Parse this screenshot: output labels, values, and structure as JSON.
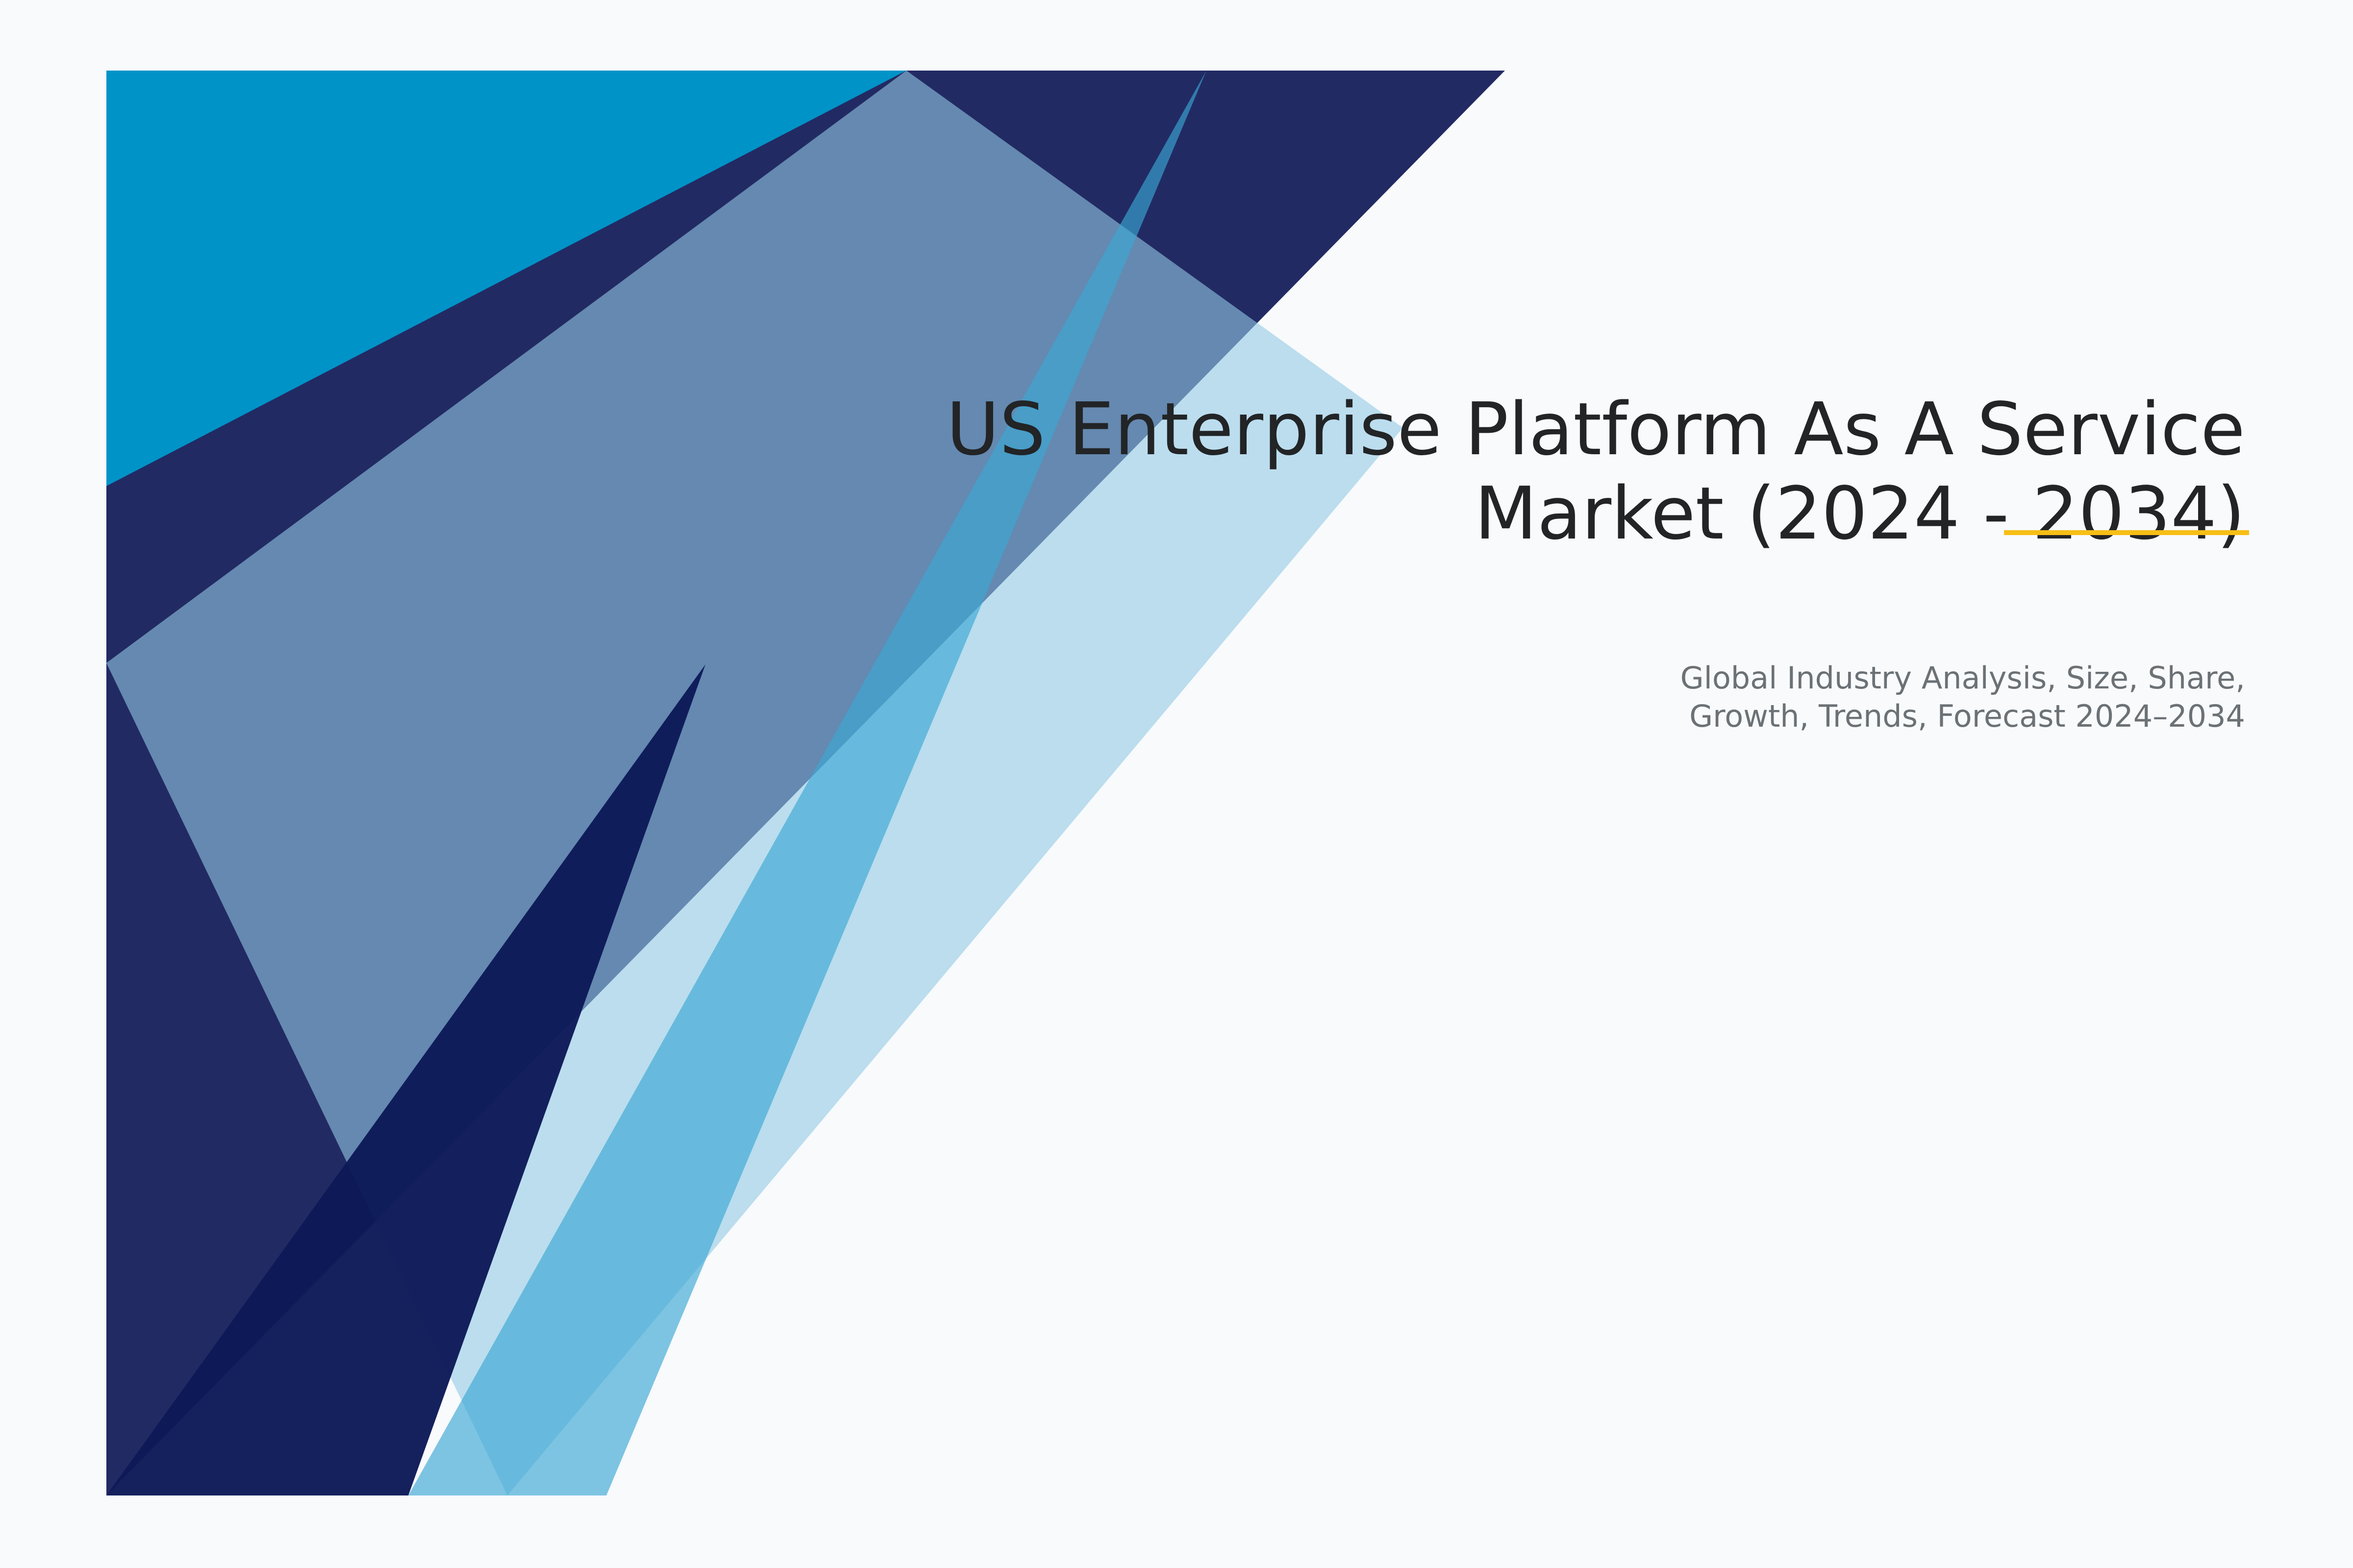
{
  "cover": {
    "title_lines": [
      "US Enterprise Platform As A Service",
      "Market (2024 - 2034)"
    ],
    "subtitle_lines": [
      "Global Industry Analysis, Size, Share,",
      "Growth, Trends, Forecast 2024–2034"
    ]
  },
  "colors": {
    "background": "#F8FAFC",
    "navy": "#222A63",
    "cyan": "#0093C8",
    "light_blue": "#92CAE5",
    "mid_blue": "#3AA8D4",
    "deep_navy": "#0D1A58",
    "accent_underline": "#F7BE15",
    "title_text": "#222426",
    "subtitle_text": "#6B7175"
  }
}
